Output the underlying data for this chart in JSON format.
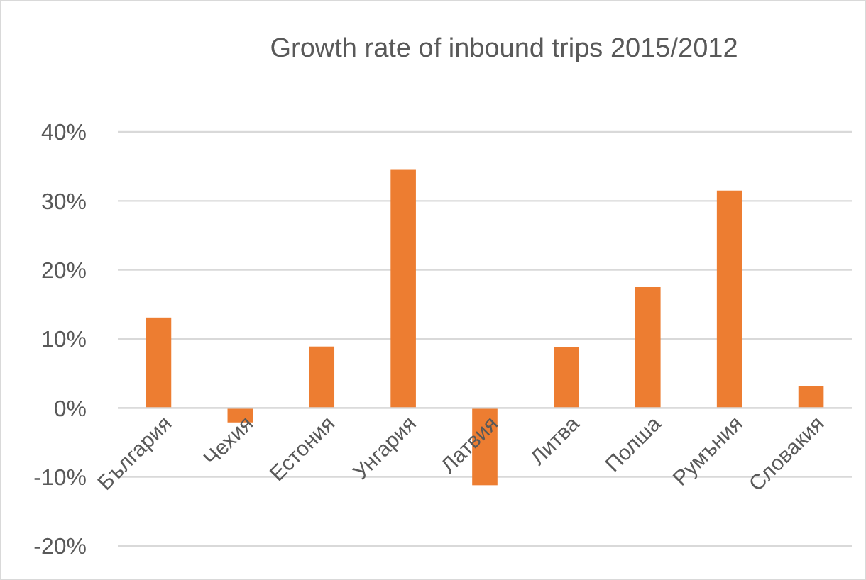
{
  "chart_data": {
    "type": "bar",
    "title": "Growth rate of inbound trips 2015/2012",
    "categories": [
      "България",
      "Чехия",
      "Естония",
      "Унгария",
      "Латвия",
      "Литва",
      "Полша",
      "Румъния",
      "Словакия"
    ],
    "values": [
      13.1,
      -2.1,
      8.9,
      34.5,
      -11.2,
      8.8,
      17.5,
      31.5,
      3.2
    ],
    "color": "#ed7d31",
    "ylim": [
      -20,
      40
    ],
    "yticks": [
      {
        "value": -20,
        "label": "-20%"
      },
      {
        "value": -10,
        "label": "-10%"
      },
      {
        "value": 0,
        "label": "0%"
      },
      {
        "value": 10,
        "label": "10%"
      },
      {
        "value": 20,
        "label": "20%"
      },
      {
        "value": 30,
        "label": "30%"
      },
      {
        "value": 40,
        "label": "40%"
      }
    ],
    "grid": "y"
  }
}
